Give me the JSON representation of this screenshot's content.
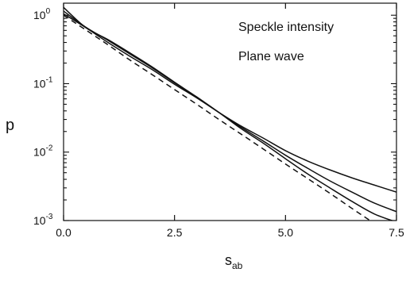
{
  "chart_data": {
    "type": "line",
    "title": "",
    "xlabel": "s",
    "xlabel_sub": "ab",
    "ylabel": "p",
    "xlim": [
      0,
      7.5
    ],
    "ylim": [
      0.001,
      1.5
    ],
    "yscale": "log",
    "grid": false,
    "x_ticks": [
      0,
      2.5,
      5,
      7.5
    ],
    "x_tick_labels": [
      "0.0",
      "2.5",
      "5.0",
      "7.5"
    ],
    "y_ticks": [
      1,
      0.1,
      0.01,
      0.001
    ],
    "y_tick_labels": [
      {
        "base": "10",
        "exp": "0"
      },
      {
        "base": "10",
        "exp": "-1"
      },
      {
        "base": "10",
        "exp": "-2"
      },
      {
        "base": "10",
        "exp": "-3"
      }
    ],
    "annotations": [
      "Speckle intensity",
      "Plane wave"
    ],
    "series": [
      {
        "style": "solid",
        "x": [
          0,
          0.5,
          1,
          1.5,
          2,
          2.5,
          3,
          3.5,
          4,
          4.5,
          5,
          5.5,
          6,
          6.5,
          7,
          7.5
        ],
        "y": [
          1.05,
          0.66,
          0.4,
          0.25,
          0.16,
          0.098,
          0.062,
          0.038,
          0.024,
          0.016,
          0.0105,
          0.0074,
          0.0055,
          0.0042,
          0.0033,
          0.0026
        ]
      },
      {
        "style": "solid",
        "x": [
          0,
          0.5,
          1,
          1.5,
          2,
          2.5,
          3,
          3.5,
          4,
          4.5,
          5,
          5.5,
          6,
          6.5,
          7,
          7.5
        ],
        "y": [
          1.15,
          0.67,
          0.43,
          0.27,
          0.17,
          0.103,
          0.063,
          0.038,
          0.023,
          0.0145,
          0.009,
          0.0058,
          0.0038,
          0.0026,
          0.0018,
          0.00135
        ]
      },
      {
        "style": "solid",
        "x": [
          0,
          0.5,
          1,
          1.5,
          2,
          2.5,
          3,
          3.5,
          4,
          4.5,
          5,
          5.5,
          6,
          6.5,
          7,
          7.5
        ],
        "y": [
          1.3,
          0.66,
          0.44,
          0.28,
          0.175,
          0.105,
          0.064,
          0.038,
          0.022,
          0.0135,
          0.008,
          0.0048,
          0.003,
          0.0019,
          0.00125,
          0.00095
        ]
      },
      {
        "style": "dashed",
        "x": [
          0,
          0.5,
          1,
          1.5,
          2,
          2.5,
          3,
          3.5,
          4,
          4.5,
          5,
          5.5,
          6,
          6.5,
          7,
          7.5
        ],
        "y": [
          1.0,
          0.61,
          0.37,
          0.22,
          0.135,
          0.082,
          0.05,
          0.03,
          0.0183,
          0.0111,
          0.0067,
          0.0041,
          0.0025,
          0.0015,
          0.00091,
          0.00055
        ]
      }
    ]
  }
}
